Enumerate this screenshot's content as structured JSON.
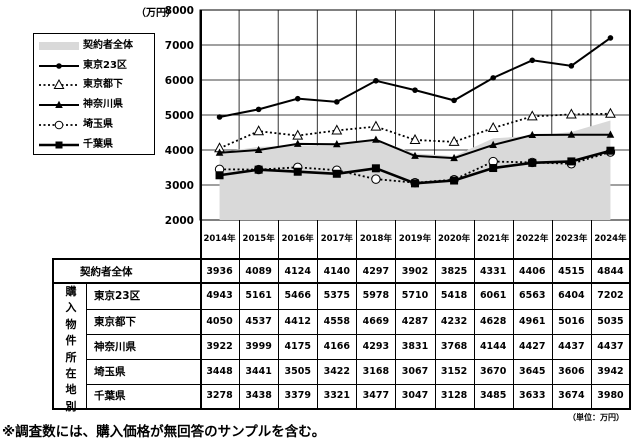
{
  "chart_data": {
    "type": "line",
    "unit": "（万円）",
    "ylim": [
      2000,
      8000
    ],
    "y_ticks": [
      2000,
      3000,
      4000,
      5000,
      6000,
      7000,
      8000
    ],
    "x": [
      "2014年",
      "2015年",
      "2016年",
      "2017年",
      "2018年",
      "2019年",
      "2020年",
      "2021年",
      "2022年",
      "2023年",
      "2024年"
    ],
    "grid": true,
    "legend_position": "top-left",
    "series": [
      {
        "name": "契約者全体",
        "style": "area",
        "color": "#d9d9d9",
        "values": [
          3936,
          4089,
          4124,
          4140,
          4297,
          3902,
          3825,
          4331,
          4406,
          4515,
          4844
        ]
      },
      {
        "name": "東京23区",
        "style": "solid-diamond",
        "color": "#000000",
        "values": [
          4943,
          5161,
          5466,
          5375,
          5978,
          5710,
          5418,
          6061,
          6563,
          6404,
          7202
        ]
      },
      {
        "name": "東京都下",
        "style": "dotted-open-triangle",
        "color": "#000000",
        "values": [
          4050,
          4537,
          4412,
          4558,
          4669,
          4287,
          4232,
          4628,
          4961,
          5016,
          5035
        ]
      },
      {
        "name": "神奈川県",
        "style": "solid-filled-triangle",
        "color": "#000000",
        "values": [
          3922,
          3999,
          4175,
          4166,
          4293,
          3831,
          3768,
          4144,
          4427,
          4437,
          4437
        ]
      },
      {
        "name": "埼玉県",
        "style": "dotted-open-circle",
        "color": "#000000",
        "values": [
          3448,
          3441,
          3505,
          3422,
          3168,
          3067,
          3152,
          3670,
          3645,
          3606,
          3942
        ]
      },
      {
        "name": "千葉県",
        "style": "thick-square",
        "color": "#000000",
        "values": [
          3278,
          3438,
          3379,
          3321,
          3477,
          3047,
          3128,
          3485,
          3633,
          3674,
          3980
        ]
      }
    ]
  },
  "table": {
    "row_group_label": [
      "購",
      "入",
      "物",
      "件",
      "所",
      "在",
      "地",
      "別"
    ],
    "unit_note": "（単位：万円）"
  },
  "footnote": "※調査数には、購入価格が無回答のサンプルを含む。"
}
